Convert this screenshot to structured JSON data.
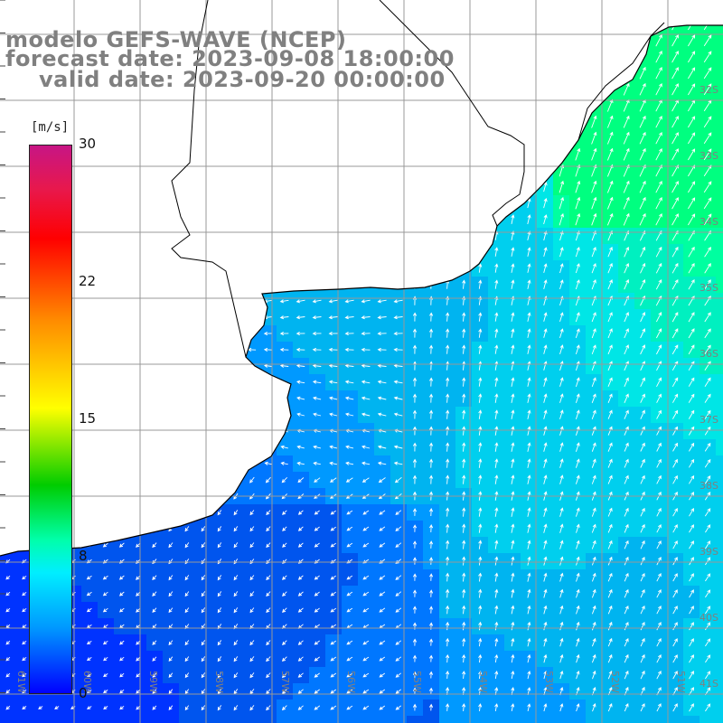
{
  "title": {
    "line1": "modelo GEFS-WAVE (NCEP)",
    "line2": "forecast date: 2023-09-08 18:00:00",
    "line3": "valid date: 2023-09-20 00:00:00"
  },
  "colorbar": {
    "unit": "[m/s]",
    "min": 0,
    "max": 30,
    "ticks": [
      "30",
      "22",
      "15",
      "8",
      "0"
    ],
    "tick_values": [
      30,
      22,
      15,
      8,
      0
    ],
    "colors": [
      "#0000ff",
      "#0099ff",
      "#00eeff",
      "#00ffaa",
      "#00cc00",
      "#ffff00",
      "#ff8c00",
      "#ff0000",
      "#e8184c",
      "#c71585"
    ]
  },
  "map": {
    "lat_labels": [
      "32S",
      "33S",
      "34S",
      "35S",
      "36S",
      "37S",
      "38S",
      "39S",
      "40S",
      "41S"
    ],
    "lon_labels": [
      "61W",
      "60W",
      "59W",
      "58W",
      "57W",
      "56W",
      "55W",
      "54W",
      "53W",
      "52W",
      "51W"
    ],
    "colors": {
      "ocean_calm": "#0055ee",
      "ocean_mid": "#00c8ee",
      "ocean_strong": "#00ff80",
      "land": "#ffffff",
      "coast": "#000000",
      "grid": "#999999"
    }
  }
}
